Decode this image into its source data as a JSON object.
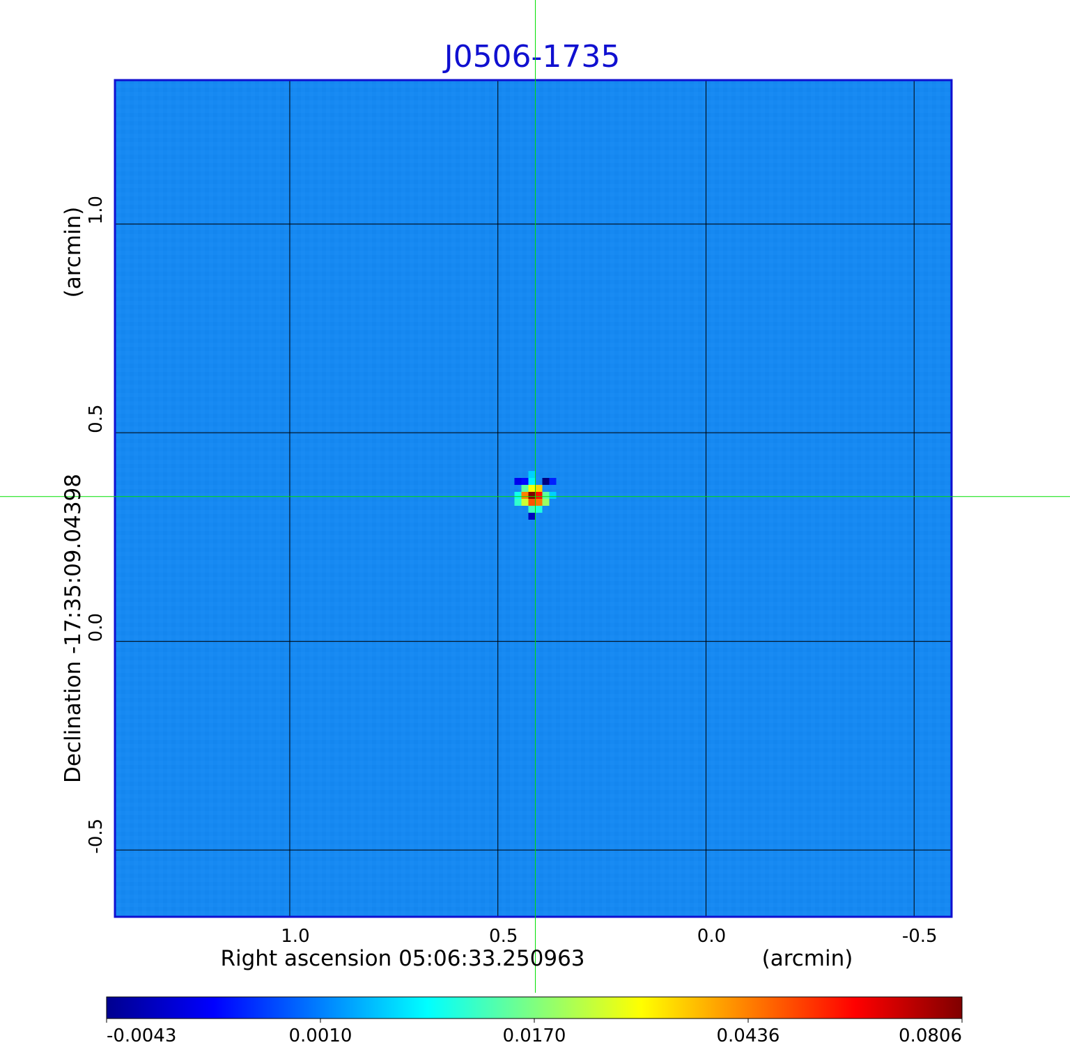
{
  "chart_data": {
    "type": "heatmap",
    "title": "J0506-1735",
    "xlabel": "Right ascension  05:06:33.250963",
    "xlabel_unit": "(arcmin)",
    "ylabel": "Declination  -17:35:09.04398",
    "ylabel_unit": "(arcmin)",
    "x_ticks": [
      "1.0",
      "0.5",
      "0.0",
      "-0.5"
    ],
    "x_tick_values": [
      1.0,
      0.5,
      0.0,
      -0.5
    ],
    "xlim": [
      1.42,
      -0.59
    ],
    "y_ticks": [
      "1.0",
      "0.5",
      "0.0",
      "-0.5"
    ],
    "y_tick_values": [
      1.0,
      0.5,
      0.0,
      -0.5
    ],
    "ylim": [
      -0.66,
      1.345
    ],
    "grid": true,
    "crosshair": {
      "x": 0.41,
      "y": 0.347,
      "color": "#00e000"
    },
    "colormap": "jet",
    "colorbar": {
      "ticks": [
        "-0.0043",
        "0.0010",
        "0.0170",
        "0.0436",
        "0.0806"
      ],
      "tick_values": [
        -0.0043,
        0.001,
        0.017,
        0.0436,
        0.0806
      ],
      "placement": "bottom"
    },
    "background_level": 0.001,
    "peak": {
      "x": 0.41,
      "y": 0.35,
      "value": 0.0806
    },
    "pixels": [
      {
        "dx": -1,
        "dy": 0,
        "value": 0.0436
      },
      {
        "dx": 0,
        "dy": 0,
        "value": 0.0806
      },
      {
        "dx": 1,
        "dy": 0,
        "value": 0.06
      },
      {
        "dx": -1,
        "dy": -1,
        "value": 0.025
      },
      {
        "dx": 0,
        "dy": -1,
        "value": 0.05
      },
      {
        "dx": 1,
        "dy": -1,
        "value": 0.045
      },
      {
        "dx": 2,
        "dy": -1,
        "value": 0.02
      },
      {
        "dx": -1,
        "dy": 1,
        "value": 0.015
      },
      {
        "dx": 0,
        "dy": 1,
        "value": 0.03
      },
      {
        "dx": 1,
        "dy": 1,
        "value": 0.035
      },
      {
        "dx": 2,
        "dy": 0,
        "value": 0.015
      },
      {
        "dx": -2,
        "dy": 0,
        "value": 0.01
      },
      {
        "dx": -2,
        "dy": -1,
        "value": 0.012
      },
      {
        "dx": 0,
        "dy": -2,
        "value": 0.013
      },
      {
        "dx": 1,
        "dy": -2,
        "value": 0.011
      },
      {
        "dx": 0,
        "dy": 2,
        "value": 0.008
      },
      {
        "dx": 3,
        "dy": 0,
        "value": 0.006
      },
      {
        "dx": 2,
        "dy": 2,
        "value": -0.0043
      },
      {
        "dx": -2,
        "dy": 2,
        "value": -0.002
      },
      {
        "dx": 0,
        "dy": -3,
        "value": -0.003
      },
      {
        "dx": 3,
        "dy": 2,
        "value": -0.001
      },
      {
        "dx": 0,
        "dy": 3,
        "value": 0.006
      },
      {
        "dx": -1,
        "dy": 2,
        "value": -0.0015
      }
    ]
  }
}
